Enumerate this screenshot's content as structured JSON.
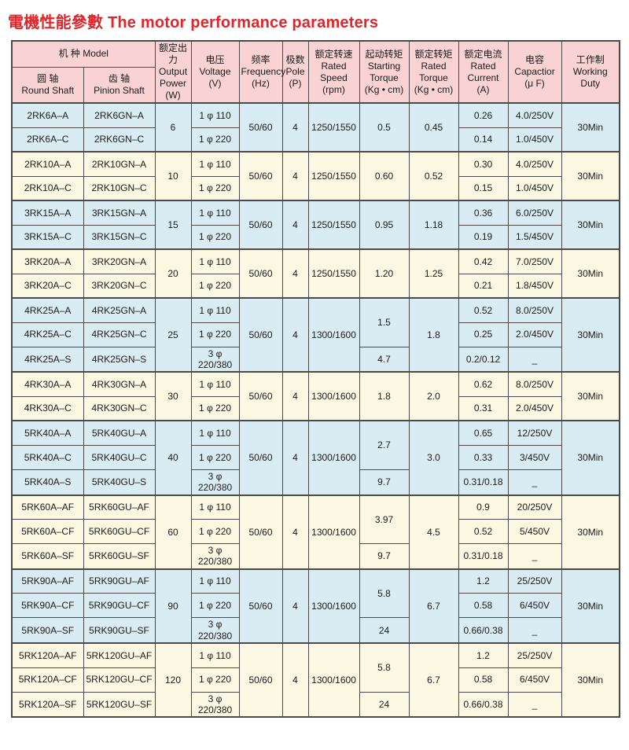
{
  "page": {
    "title": "電機性能參數 The motor performance parameters"
  },
  "colors": {
    "title_red": "#e2252b",
    "header_pink": "#f9d3d3",
    "group_blue": "#d9ecf4",
    "group_cream": "#faf8e2",
    "border": "#4a4a4a"
  },
  "table": {
    "header": {
      "model": "机  种 Model",
      "round_shaft": "圆 轴\nRound Shaft",
      "pinion_shaft": "齿 轴\nPinion Shaft",
      "output_power": "额定出力\nOutput\nPower\n(W)",
      "voltage": "电压\nVoltage\n(V)",
      "frequency": "频率\nFrequency\n(Hz)",
      "pole": "极数\nPole\n(P)",
      "rated_speed": "额定转速\nRated\nSpeed\n(rpm)",
      "starting_torque": "起动转矩\nStarting\nTorque\n(Kg • cm)",
      "rated_torque": "额定转矩\nRated\nTorque\n(Kg • cm)",
      "rated_current": "额定电流\nRated\nCurrent\n(A)",
      "capacitor": "电容\nCapactior\n(μ F)",
      "working_duty": "工作制\nWorking\nDuty"
    },
    "groups": [
      {
        "bg": "blue",
        "power": "6",
        "frequency": "50/60",
        "pole": "4",
        "speed": "1250/1550",
        "rated_torque": "0.45",
        "duty": "30Min",
        "starting": [
          {
            "row": 0,
            "span": 2,
            "value": "0.5"
          }
        ],
        "rows": [
          {
            "round": "2RK6A–A",
            "pinion": "2RK6GN–A",
            "voltage": "1 φ 110",
            "current": "0.26",
            "capacitor": "4.0/250V"
          },
          {
            "round": "2RK6A–C",
            "pinion": "2RK6GN–C",
            "voltage": "1 φ 220",
            "current": "0.14",
            "capacitor": "1.0/450V"
          }
        ]
      },
      {
        "bg": "cream",
        "power": "10",
        "frequency": "50/60",
        "pole": "4",
        "speed": "1250/1550",
        "rated_torque": "0.52",
        "duty": "30Min",
        "starting": [
          {
            "row": 0,
            "span": 2,
            "value": "0.60"
          }
        ],
        "rows": [
          {
            "round": "2RK10A–A",
            "pinion": "2RK10GN–A",
            "voltage": "1 φ 110",
            "current": "0.30",
            "capacitor": "4.0/250V"
          },
          {
            "round": "2RK10A–C",
            "pinion": "2RK10GN–C",
            "voltage": "1 φ 220",
            "current": "0.15",
            "capacitor": "1.0/450V"
          }
        ]
      },
      {
        "bg": "blue",
        "power": "15",
        "frequency": "50/60",
        "pole": "4",
        "speed": "1250/1550",
        "rated_torque": "1.18",
        "duty": "30Min",
        "starting": [
          {
            "row": 0,
            "span": 2,
            "value": "0.95"
          }
        ],
        "rows": [
          {
            "round": "3RK15A–A",
            "pinion": "3RK15GN–A",
            "voltage": "1 φ 110",
            "current": "0.36",
            "capacitor": "6.0/250V"
          },
          {
            "round": "3RK15A–C",
            "pinion": "3RK15GN–C",
            "voltage": "1 φ 220",
            "current": "0.19",
            "capacitor": "1.5/450V"
          }
        ]
      },
      {
        "bg": "cream",
        "power": "20",
        "frequency": "50/60",
        "pole": "4",
        "speed": "1250/1550",
        "rated_torque": "1.25",
        "duty": "30Min",
        "starting": [
          {
            "row": 0,
            "span": 2,
            "value": "1.20"
          }
        ],
        "rows": [
          {
            "round": "3RK20A–A",
            "pinion": "3RK20GN–A",
            "voltage": "1 φ 110",
            "current": "0.42",
            "capacitor": "7.0/250V"
          },
          {
            "round": "3RK20A–C",
            "pinion": "3RK20GN–C",
            "voltage": "1 φ 220",
            "current": "0.21",
            "capacitor": "1.8/450V"
          }
        ]
      },
      {
        "bg": "blue",
        "power": "25",
        "frequency": "50/60",
        "pole": "4",
        "speed": "1300/1600",
        "rated_torque": "1.8",
        "duty": "30Min",
        "starting": [
          {
            "row": 0,
            "span": 2,
            "value": "1.5"
          },
          {
            "row": 2,
            "span": 1,
            "value": "4.7"
          }
        ],
        "rows": [
          {
            "round": "4RK25A–A",
            "pinion": "4RK25GN–A",
            "voltage": "1 φ 110",
            "current": "0.52",
            "capacitor": "8.0/250V"
          },
          {
            "round": "4RK25A–C",
            "pinion": "4RK25GN–C",
            "voltage": "1 φ 220",
            "current": "0.25",
            "capacitor": "2.0/450V"
          },
          {
            "round": "4RK25A–S",
            "pinion": "4RK25GN–S",
            "voltage": "3 φ 220/380",
            "current": "0.2/0.12",
            "capacitor": "_"
          }
        ]
      },
      {
        "bg": "cream",
        "power": "30",
        "frequency": "50/60",
        "pole": "4",
        "speed": "1300/1600",
        "rated_torque": "2.0",
        "duty": "30Min",
        "starting": [
          {
            "row": 0,
            "span": 2,
            "value": "1.8"
          }
        ],
        "rows": [
          {
            "round": "4RK30A–A",
            "pinion": "4RK30GN–A",
            "voltage": "1 φ 110",
            "current": "0.62",
            "capacitor": "8.0/250V"
          },
          {
            "round": "4RK30A–C",
            "pinion": "4RK30GN–C",
            "voltage": "1 φ 220",
            "current": "0.31",
            "capacitor": "2.0/450V"
          }
        ]
      },
      {
        "bg": "blue",
        "power": "40",
        "frequency": "50/60",
        "pole": "4",
        "speed": "1300/1600",
        "rated_torque": "3.0",
        "duty": "30Min",
        "starting": [
          {
            "row": 0,
            "span": 2,
            "value": "2.7"
          },
          {
            "row": 2,
            "span": 1,
            "value": "9.7"
          }
        ],
        "rows": [
          {
            "round": "5RK40A–A",
            "pinion": "5RK40GU–A",
            "voltage": "1 φ 110",
            "current": "0.65",
            "capacitor": "12/250V"
          },
          {
            "round": "5RK40A–C",
            "pinion": "5RK40GU–C",
            "voltage": "1 φ 220",
            "current": "0.33",
            "capacitor": "3/450V"
          },
          {
            "round": "5RK40A–S",
            "pinion": "5RK40GU–S",
            "voltage": "3 φ 220/380",
            "current": "0.31/0.18",
            "capacitor": "_"
          }
        ]
      },
      {
        "bg": "cream",
        "power": "60",
        "frequency": "50/60",
        "pole": "4",
        "speed": "1300/1600",
        "rated_torque": "4.5",
        "duty": "30Min",
        "starting": [
          {
            "row": 0,
            "span": 2,
            "value": "3.97"
          },
          {
            "row": 2,
            "span": 1,
            "value": "9.7"
          }
        ],
        "rows": [
          {
            "round": "5RK60A–AF",
            "pinion": "5RK60GU–AF",
            "voltage": "1 φ 110",
            "current": "0.9",
            "capacitor": "20/250V"
          },
          {
            "round": "5RK60A–CF",
            "pinion": "5RK60GU–CF",
            "voltage": "1 φ 220",
            "current": "0.52",
            "capacitor": "5/450V"
          },
          {
            "round": "5RK60A–SF",
            "pinion": "5RK60GU–SF",
            "voltage": "3 φ 220/380",
            "current": "0.31/0.18",
            "capacitor": "_"
          }
        ]
      },
      {
        "bg": "blue",
        "power": "90",
        "frequency": "50/60",
        "pole": "4",
        "speed": "1300/1600",
        "rated_torque": "6.7",
        "duty": "30Min",
        "starting": [
          {
            "row": 0,
            "span": 2,
            "value": "5.8"
          },
          {
            "row": 2,
            "span": 1,
            "value": "24"
          }
        ],
        "rows": [
          {
            "round": "5RK90A–AF",
            "pinion": "5RK90GU–AF",
            "voltage": "1 φ 110",
            "current": "1.2",
            "capacitor": "25/250V"
          },
          {
            "round": "5RK90A–CF",
            "pinion": "5RK90GU–CF",
            "voltage": "1 φ 220",
            "current": "0.58",
            "capacitor": "6/450V"
          },
          {
            "round": "5RK90A–SF",
            "pinion": "5RK90GU–SF",
            "voltage": "3 φ 220/380",
            "current": "0.66/0.38",
            "capacitor": "_"
          }
        ]
      },
      {
        "bg": "cream",
        "power": "120",
        "frequency": "50/60",
        "pole": "4",
        "speed": "1300/1600",
        "rated_torque": "6.7",
        "duty": "30Min",
        "starting": [
          {
            "row": 0,
            "span": 2,
            "value": "5.8"
          },
          {
            "row": 2,
            "span": 1,
            "value": "24"
          }
        ],
        "rows": [
          {
            "round": "5RK120A–AF",
            "pinion": "5RK120GU–AF",
            "voltage": "1 φ 110",
            "current": "1.2",
            "capacitor": "25/250V"
          },
          {
            "round": "5RK120A–CF",
            "pinion": "5RK120GU–CF",
            "voltage": "1 φ 220",
            "current": "0.58",
            "capacitor": "6/450V"
          },
          {
            "round": "5RK120A–SF",
            "pinion": "5RK120GU–SF",
            "voltage": "3 φ 220/380",
            "current": "0.66/0.38",
            "capacitor": "_"
          }
        ]
      }
    ]
  }
}
